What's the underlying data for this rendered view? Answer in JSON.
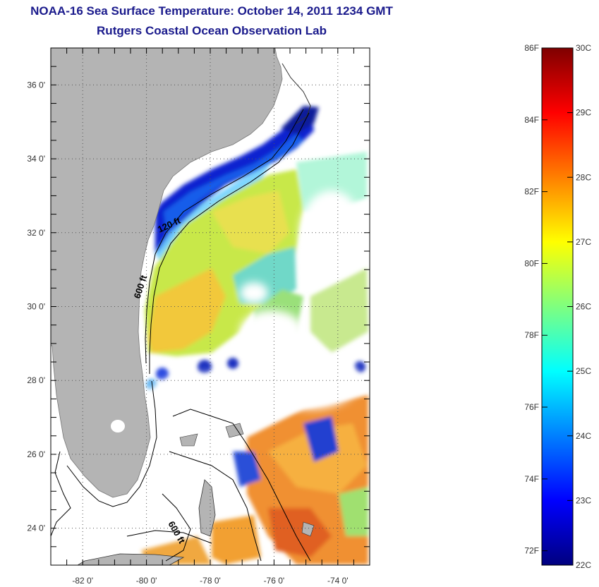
{
  "title": "NOAA-16 Sea Surface Temperature:  October 14, 2011 1234 GMT",
  "subtitle": "Rutgers Coastal Ocean Observation Lab",
  "map": {
    "lat_labels": [
      "36 0'",
      "34 0'",
      "32 0'",
      "30 0'",
      "28 0'",
      "26 0'",
      "24 0'"
    ],
    "lat_values": [
      36,
      34,
      32,
      30,
      28,
      26,
      24
    ],
    "lon_labels": [
      "-82 0'",
      "-80 0'",
      "-78 0'",
      "-76 0'",
      "-74 0'"
    ],
    "lon_values": [
      -82,
      -80,
      -78,
      -76,
      -74
    ],
    "lat_range": [
      23,
      37
    ],
    "lon_range": [
      -83,
      -73
    ],
    "isobath_labels": [
      "120 ft",
      "600 ft",
      "600 ft"
    ],
    "land_color": "#b4b4b4",
    "cloud_color": "#ffffff",
    "grid": "dotted"
  },
  "colorbar": {
    "celsius_labels": [
      "30C",
      "29C",
      "28C",
      "27C",
      "26C",
      "25C",
      "24C",
      "23C",
      "22C"
    ],
    "fahrenheit_labels": [
      "86F",
      "84F",
      "82F",
      "80F",
      "78F",
      "76F",
      "74F",
      "72F"
    ],
    "range_c": [
      22,
      30
    ],
    "range_f": [
      72,
      86
    ],
    "colormap": "jet",
    "colors": [
      "#00007f",
      "#0000ff",
      "#007fff",
      "#00ffff",
      "#7fff7f",
      "#ffff00",
      "#ff7f00",
      "#ff0000",
      "#7f0000"
    ]
  }
}
